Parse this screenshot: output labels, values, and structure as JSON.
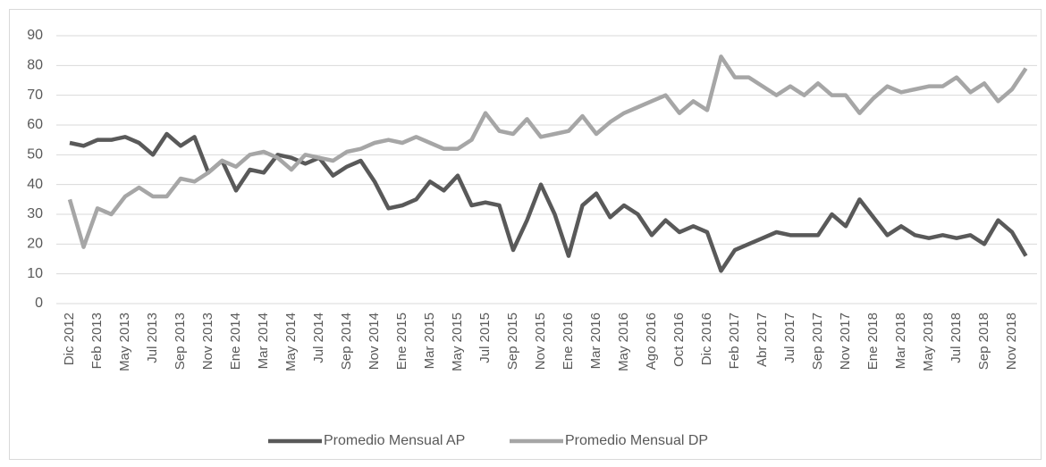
{
  "chart_data": {
    "type": "line",
    "categories": [
      "Dic 2012",
      null,
      "Feb 2013",
      null,
      "May 2013",
      null,
      "Jul 2013",
      null,
      "Sep 2013",
      null,
      "Nov 2013",
      null,
      "Ene 2014",
      null,
      "Mar 2014",
      null,
      "May 2014",
      null,
      "Jul 2014",
      null,
      "Sep 2014",
      null,
      "Nov 2014",
      null,
      "Ene 2015",
      null,
      "Mar 2015",
      null,
      "May 2015",
      null,
      "Jul 2015",
      null,
      "Sep 2015",
      null,
      "Nov 2015",
      null,
      "Ene 2016",
      null,
      "Mar 2016",
      null,
      "May 2016",
      null,
      "Ago 2016",
      null,
      "Oct 2016",
      null,
      "Dic 2016",
      null,
      "Feb 2017",
      null,
      "Abr 2017",
      null,
      "Jul 2017",
      null,
      "Sep 2017",
      null,
      "Nov 2017",
      null,
      "Ene 2018",
      null,
      "Mar 2018",
      null,
      "May 2018",
      null,
      "Jul 2018",
      null,
      "Sep 2018",
      null,
      "Nov 2018",
      null
    ],
    "series": [
      {
        "name": "Promedio Mensual AP",
        "color": "#595959",
        "values": [
          54,
          53,
          55,
          55,
          56,
          54,
          50,
          57,
          53,
          56,
          44,
          48,
          38,
          45,
          44,
          50,
          49,
          47,
          49,
          43,
          46,
          48,
          41,
          32,
          33,
          35,
          41,
          38,
          43,
          33,
          34,
          33,
          18,
          28,
          40,
          30,
          16,
          33,
          37,
          29,
          33,
          30,
          23,
          28,
          24,
          26,
          24,
          11,
          18,
          20,
          22,
          24,
          23,
          23,
          23,
          30,
          26,
          35,
          29,
          23,
          26,
          23,
          22,
          23,
          22,
          23,
          20,
          28,
          24,
          16
        ]
      },
      {
        "name": "Promedio Mensual DP",
        "color": "#a6a6a6",
        "values": [
          35,
          19,
          32,
          30,
          36,
          39,
          36,
          36,
          42,
          41,
          44,
          48,
          46,
          50,
          51,
          49,
          45,
          50,
          49,
          48,
          51,
          52,
          54,
          55,
          54,
          56,
          54,
          52,
          52,
          55,
          64,
          58,
          57,
          62,
          56,
          57,
          58,
          63,
          57,
          61,
          64,
          66,
          68,
          70,
          64,
          68,
          65,
          83,
          76,
          76,
          73,
          70,
          73,
          70,
          74,
          70,
          70,
          64,
          69,
          73,
          71,
          72,
          73,
          73,
          76,
          71,
          74,
          68,
          72,
          79
        ]
      }
    ],
    "ylim": [
      0,
      90
    ],
    "yticks": [
      0,
      10,
      20,
      30,
      40,
      50,
      60,
      70,
      80,
      90
    ],
    "grid": true,
    "legend": "bottom"
  }
}
